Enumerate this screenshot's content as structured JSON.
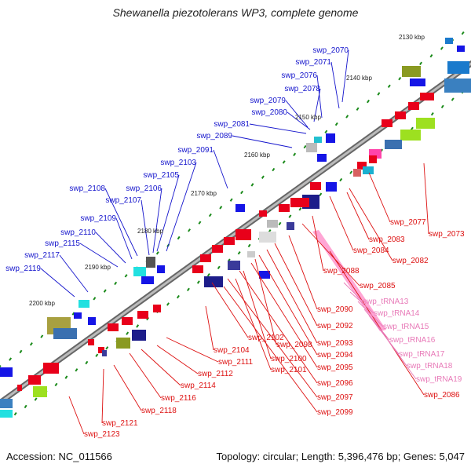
{
  "title": "Shewanella piezotolerans WP3, complete genome",
  "footer": {
    "accession": "Accession: NC_011566",
    "summary": "Topology: circular; Length: 5,396,476 bp; Genes: 5,047"
  },
  "colors": {
    "backbone": "#8a8a8a",
    "forward_gene": "#e8001a",
    "reverse_gene": "#1515e6",
    "trna": "#ff9cd0",
    "ticks": "#1a8a1a",
    "label_top": "#1414cc",
    "label_bottom": "#dd1111",
    "label_trna": "#e87ab8"
  },
  "scale_labels": [
    "2130 kbp",
    "2140 kbp",
    "2150 kbp",
    "2160 kbp",
    "2170 kbp",
    "2180 kbp",
    "2190 kbp",
    "2200 kbp"
  ],
  "top_labels": [
    "swp_2070",
    "swp_2071",
    "swp_2076",
    "swp_2078",
    "swp_2079",
    "swp_2080",
    "swp_2081",
    "swp_2089",
    "swp_2091",
    "swp_2103",
    "swp_2105",
    "swp_2106",
    "swp_2107",
    "swp_2108",
    "swp_2109",
    "swp_2110",
    "swp_2115",
    "swp_2117",
    "swp_2119"
  ],
  "bottom_labels": [
    "swp_2073",
    "swp_2077",
    "swp_2083",
    "swp_2084",
    "swp_2082",
    "swp_2088",
    "swp_2085",
    "swp_2090",
    "swp_2092",
    "swp_2093",
    "swp_2094",
    "swp_2095",
    "swp_2096",
    "swp_2097",
    "swp_2099",
    "swp_2086",
    "swp_2098",
    "swp_2100",
    "swp_2101",
    "swp_2102",
    "swp_2104",
    "swp_2111",
    "swp_2112",
    "swp_2114",
    "swp_2116",
    "swp_2118",
    "swp_2121",
    "swp_2123"
  ],
  "trna_labels": [
    "swp_tRNA13",
    "swp_tRNA14",
    "swp_tRNA15",
    "swp_tRNA16",
    "swp_tRNA17",
    "swp_tRNA18",
    "swp_tRNA19"
  ]
}
